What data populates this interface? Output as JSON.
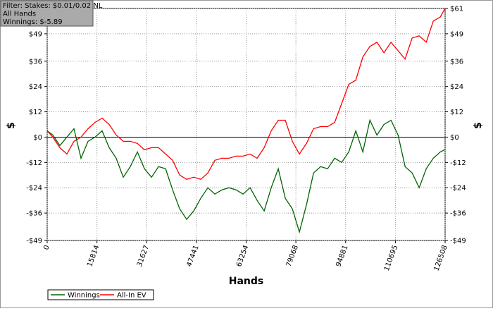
{
  "chart_data": {
    "type": "line",
    "annotations": [
      "Filter: Stakes: $0.01/0.02 NL",
      "All Hands",
      "Winnings: $-5.89"
    ],
    "xlabel": "Hands",
    "ylabel": "$",
    "y2label": "$",
    "x": [
      0,
      1792,
      4032,
      6272,
      8512,
      10752,
      12992,
      15232,
      17472,
      19712,
      21952,
      24192,
      26432,
      28672,
      30912,
      33152,
      35392,
      37632,
      39872,
      42112,
      44352,
      46592,
      48832,
      51072,
      53312,
      55552,
      57792,
      60032,
      62272,
      64512,
      66752,
      68992,
      71232,
      73472,
      75712,
      77952,
      80192,
      82432,
      84672,
      86912,
      89152,
      91392,
      93632,
      95872,
      98112,
      100352,
      102592,
      104832,
      107072,
      109312,
      111552,
      113792,
      116032,
      118272,
      120512,
      122752,
      124992,
      126508
    ],
    "series": [
      {
        "name": "Winnings",
        "color": "#006400",
        "values": [
          3,
          1,
          -4,
          0,
          4,
          -10,
          -2,
          0,
          3,
          -5,
          -10,
          -19,
          -14,
          -7,
          -15,
          -19,
          -14,
          -15,
          -25,
          -34,
          -39,
          -35,
          -29,
          -24,
          -27,
          -25,
          -24,
          -25,
          -27,
          -24,
          -30,
          -35,
          -24,
          -15,
          -29,
          -34,
          -45,
          -32,
          -17,
          -14,
          -15,
          -10,
          -12,
          -7,
          3,
          -7,
          8,
          1,
          6,
          8,
          1,
          -14,
          -17,
          -24,
          -15,
          -10,
          -7,
          -5.89
        ]
      },
      {
        "name": "All-In EV",
        "color": "#ff0000",
        "values": [
          3,
          0,
          -5,
          -8,
          -2,
          0,
          4,
          7,
          9,
          6,
          1,
          -2,
          -2,
          -3,
          -6,
          -5,
          -5,
          -8,
          -11,
          -18,
          -20,
          -19,
          -20,
          -17,
          -11,
          -10,
          -10,
          -9,
          -9,
          -8,
          -10,
          -5,
          3,
          8,
          8,
          -2,
          -8,
          -3,
          4,
          5,
          5,
          7,
          16,
          25,
          27,
          38,
          43,
          45,
          40,
          45,
          41,
          37,
          47,
          48,
          45,
          55,
          57,
          61
        ]
      }
    ],
    "xlim": [
      0,
      126508
    ],
    "xticks": [
      0,
      15814,
      31627,
      47441,
      63254,
      79068,
      94881,
      110695,
      126508
    ],
    "ylim": [
      -49,
      61
    ],
    "yticks": [
      {
        "value": -49,
        "label": "-$49"
      },
      {
        "value": -36,
        "label": "-$36"
      },
      {
        "value": -24,
        "label": "-$24"
      },
      {
        "value": -12,
        "label": "-$12"
      },
      {
        "value": 0,
        "label": "$0"
      },
      {
        "value": 12,
        "label": "$12"
      },
      {
        "value": 24,
        "label": "$24"
      },
      {
        "value": 36,
        "label": "$36"
      },
      {
        "value": 49,
        "label": "$49"
      },
      {
        "value": 61,
        "label": "$61"
      }
    ],
    "y2lim": [
      -49,
      61
    ],
    "y2ticks": [
      {
        "value": -49,
        "label": "-$49"
      },
      {
        "value": -36,
        "label": "-$36"
      },
      {
        "value": -24,
        "label": "-$24"
      },
      {
        "value": -12,
        "label": "-$12"
      },
      {
        "value": 0,
        "label": "$0"
      },
      {
        "value": 12,
        "label": "$12"
      },
      {
        "value": 24,
        "label": "$24"
      },
      {
        "value": 36,
        "label": "$36"
      },
      {
        "value": 49,
        "label": "$49"
      },
      {
        "value": 61,
        "label": "$61"
      }
    ],
    "grid": true,
    "legend": "bottom-left"
  }
}
